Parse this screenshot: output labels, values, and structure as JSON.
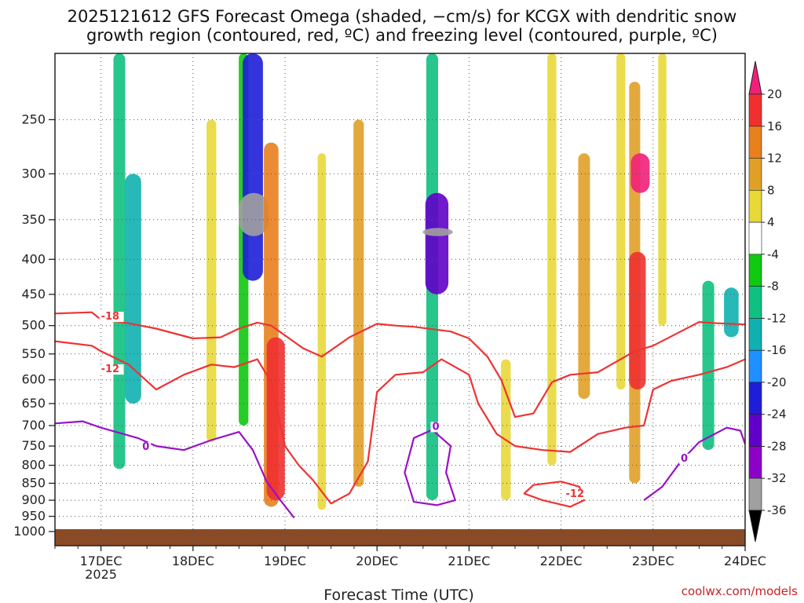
{
  "title": {
    "line1": "2025121612 GFS Forecast Omega (shaded, −cm/s) for KCGX with dendritic snow",
    "line2": "growth region (contoured, red, ºC) and freezing level (contoured, purple, ºC)"
  },
  "credit": "coolwx.com/models",
  "chart_data": {
    "type": "heatmap",
    "xlabel": "Forecast Time (UTC)",
    "ylabel": "",
    "x_range_days": [
      -0.5,
      7.0
    ],
    "x_ticks": [
      {
        "day": 0,
        "label": "17DEC",
        "sub": "2025"
      },
      {
        "day": 1,
        "label": "18DEC",
        "sub": ""
      },
      {
        "day": 2,
        "label": "19DEC",
        "sub": ""
      },
      {
        "day": 3,
        "label": "20DEC",
        "sub": ""
      },
      {
        "day": 4,
        "label": "21DEC",
        "sub": ""
      },
      {
        "day": 5,
        "label": "22DEC",
        "sub": ""
      },
      {
        "day": 6,
        "label": "23DEC",
        "sub": ""
      },
      {
        "day": 7,
        "label": "24DEC",
        "sub": ""
      }
    ],
    "y_range_hpa": [
      1000,
      200
    ],
    "y_ticks": [
      250,
      300,
      350,
      400,
      450,
      500,
      550,
      600,
      650,
      700,
      750,
      800,
      850,
      900,
      950,
      1000
    ],
    "grid": true,
    "colorbar": {
      "levels": [
        -36,
        -32,
        -28,
        -24,
        -20,
        -16,
        -12,
        -8,
        -4,
        4,
        8,
        12,
        16,
        20
      ],
      "colors": [
        "#000000",
        "#a0a0a0",
        "#8c00c8",
        "#6000c8",
        "#1e1ed8",
        "#1e90ff",
        "#10b0b0",
        "#10c080",
        "#10c810",
        "#ffffff",
        "#e8d838",
        "#e0a028",
        "#e8801e",
        "#f03030",
        "#f0207a"
      ]
    },
    "omega_features": [
      {
        "day": 0.2,
        "p_top": 200,
        "p_bot": 810,
        "value": -10
      },
      {
        "day": 0.35,
        "p_top": 300,
        "p_bot": 650,
        "value": -16
      },
      {
        "day": 1.2,
        "p_top": 250,
        "p_bot": 740,
        "value": 7
      },
      {
        "day": 1.55,
        "p_top": 200,
        "p_bot": 700,
        "value": -7
      },
      {
        "day": 1.65,
        "p_top": 200,
        "p_bot": 430,
        "value": -22
      },
      {
        "day": 1.66,
        "p_top": 320,
        "p_bot": 370,
        "value": -36
      },
      {
        "day": 1.85,
        "p_top": 270,
        "p_bot": 920,
        "value": 14
      },
      {
        "day": 1.9,
        "p_top": 520,
        "p_bot": 900,
        "value": 19
      },
      {
        "day": 2.4,
        "p_top": 280,
        "p_bot": 930,
        "value": 5
      },
      {
        "day": 2.8,
        "p_top": 250,
        "p_bot": 860,
        "value": 8
      },
      {
        "day": 3.6,
        "p_top": 200,
        "p_bot": 900,
        "value": -10
      },
      {
        "day": 3.65,
        "p_top": 320,
        "p_bot": 450,
        "value": -26
      },
      {
        "day": 3.66,
        "p_top": 360,
        "p_bot": 370,
        "value": -36
      },
      {
        "day": 4.4,
        "p_top": 560,
        "p_bot": 900,
        "value": 7
      },
      {
        "day": 4.9,
        "p_top": 200,
        "p_bot": 800,
        "value": 6
      },
      {
        "day": 5.25,
        "p_top": 280,
        "p_bot": 640,
        "value": 10
      },
      {
        "day": 5.65,
        "p_top": 200,
        "p_bot": 620,
        "value": 6
      },
      {
        "day": 5.8,
        "p_top": 220,
        "p_bot": 850,
        "value": 9
      },
      {
        "day": 5.83,
        "p_top": 390,
        "p_bot": 620,
        "value": 17
      },
      {
        "day": 5.86,
        "p_top": 280,
        "p_bot": 320,
        "value": 20
      },
      {
        "day": 6.1,
        "p_top": 200,
        "p_bot": 500,
        "value": 5
      },
      {
        "day": 6.6,
        "p_top": 430,
        "p_bot": 760,
        "value": -10
      },
      {
        "day": 6.85,
        "p_top": 440,
        "p_bot": 520,
        "value": -14
      }
    ],
    "contours": [
      {
        "level": -18,
        "color": "#ee3333",
        "label": "-18",
        "label_at": [
          0.0,
          490
        ],
        "points": [
          [
            -0.5,
            480
          ],
          [
            -0.1,
            478
          ],
          [
            0.0,
            490
          ],
          [
            0.3,
            496
          ],
          [
            0.6,
            505
          ],
          [
            1.0,
            522
          ],
          [
            1.3,
            520
          ],
          [
            1.5,
            505
          ],
          [
            1.7,
            495
          ],
          [
            1.85,
            500
          ],
          [
            2.2,
            540
          ],
          [
            2.4,
            555
          ],
          [
            2.7,
            520
          ],
          [
            3.0,
            497
          ],
          [
            3.2,
            500
          ],
          [
            3.4,
            502
          ],
          [
            3.8,
            510
          ],
          [
            4.0,
            522
          ],
          [
            4.2,
            555
          ],
          [
            4.35,
            600
          ],
          [
            4.5,
            680
          ],
          [
            4.7,
            672
          ],
          [
            4.9,
            605
          ],
          [
            5.1,
            590
          ],
          [
            5.4,
            585
          ],
          [
            5.8,
            545
          ],
          [
            6.0,
            535
          ],
          [
            6.3,
            510
          ],
          [
            6.5,
            494
          ],
          [
            6.7,
            496
          ],
          [
            7.0,
            498
          ]
        ]
      },
      {
        "level": -12,
        "color": "#ee3333",
        "label": "-12",
        "label_at": [
          0.0,
          585
        ],
        "points": [
          [
            -0.5,
            527
          ],
          [
            -0.1,
            535
          ],
          [
            0.0,
            545
          ],
          [
            0.3,
            570
          ],
          [
            0.6,
            620
          ],
          [
            0.9,
            590
          ],
          [
            1.2,
            570
          ],
          [
            1.45,
            575
          ],
          [
            1.7,
            560
          ],
          [
            1.85,
            605
          ],
          [
            2.0,
            750
          ],
          [
            2.15,
            800
          ],
          [
            2.3,
            840
          ],
          [
            2.5,
            910
          ],
          [
            2.7,
            880
          ],
          [
            2.9,
            790
          ],
          [
            3.0,
            625
          ],
          [
            3.2,
            590
          ],
          [
            3.5,
            585
          ],
          [
            3.7,
            560
          ],
          [
            4.0,
            590
          ],
          [
            4.1,
            650
          ],
          [
            4.3,
            720
          ],
          [
            4.5,
            750
          ],
          [
            4.8,
            760
          ],
          [
            5.1,
            765
          ],
          [
            5.4,
            720
          ],
          [
            5.7,
            705
          ],
          [
            5.9,
            700
          ],
          [
            6.0,
            620
          ],
          [
            6.2,
            602
          ],
          [
            6.5,
            590
          ],
          [
            6.8,
            575
          ],
          [
            7.0,
            560
          ]
        ]
      },
      {
        "level": -12,
        "color": "#ee3333",
        "label": "-12",
        "label_at": [
          5.05,
          890
        ],
        "closed": true,
        "points": [
          [
            4.6,
            880
          ],
          [
            4.8,
            900
          ],
          [
            5.1,
            920
          ],
          [
            5.25,
            900
          ],
          [
            5.2,
            860
          ],
          [
            5.0,
            845
          ],
          [
            4.7,
            855
          ],
          [
            4.6,
            880
          ]
        ]
      },
      {
        "level": 0,
        "color": "#9a10c8",
        "label": "0",
        "label_at": [
          0.45,
          760
        ],
        "points": [
          [
            -0.5,
            695
          ],
          [
            -0.2,
            690
          ],
          [
            0.0,
            705
          ],
          [
            0.4,
            730
          ],
          [
            0.6,
            750
          ],
          [
            0.9,
            760
          ],
          [
            1.2,
            735
          ],
          [
            1.5,
            715
          ],
          [
            1.65,
            760
          ],
          [
            1.8,
            845
          ],
          [
            1.95,
            900
          ],
          [
            2.1,
            955
          ]
        ]
      },
      {
        "level": 0,
        "color": "#9a10c8",
        "label": "0",
        "label_at": [
          3.6,
          710
        ],
        "closed": true,
        "points": [
          [
            3.4,
            730
          ],
          [
            3.3,
            820
          ],
          [
            3.4,
            905
          ],
          [
            3.65,
            915
          ],
          [
            3.85,
            900
          ],
          [
            3.75,
            820
          ],
          [
            3.8,
            750
          ],
          [
            3.6,
            710
          ],
          [
            3.4,
            730
          ]
        ]
      },
      {
        "level": 0,
        "color": "#9a10c8",
        "label": "0",
        "label_at": [
          6.3,
          790
        ],
        "points": [
          [
            5.9,
            900
          ],
          [
            6.1,
            860
          ],
          [
            6.3,
            790
          ],
          [
            6.5,
            740
          ],
          [
            6.8,
            705
          ],
          [
            6.95,
            712
          ],
          [
            7.0,
            745
          ]
        ]
      }
    ]
  }
}
